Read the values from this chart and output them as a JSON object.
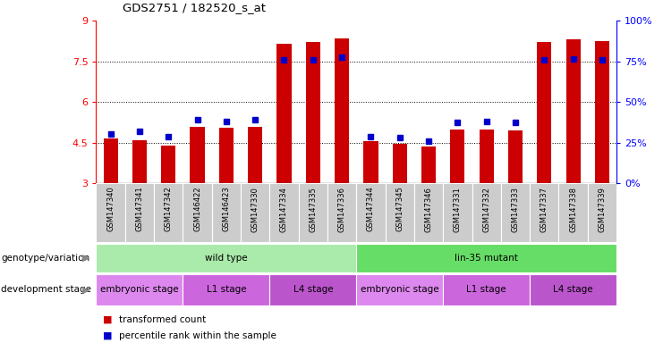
{
  "title": "GDS2751 / 182520_s_at",
  "samples": [
    "GSM147340",
    "GSM147341",
    "GSM147342",
    "GSM146422",
    "GSM146423",
    "GSM147330",
    "GSM147334",
    "GSM147335",
    "GSM147336",
    "GSM147344",
    "GSM147345",
    "GSM147346",
    "GSM147331",
    "GSM147332",
    "GSM147333",
    "GSM147337",
    "GSM147338",
    "GSM147339"
  ],
  "transformed_count": [
    4.65,
    4.6,
    4.4,
    5.1,
    5.05,
    5.1,
    8.15,
    8.2,
    8.35,
    4.55,
    4.45,
    4.35,
    5.0,
    5.0,
    4.95,
    8.2,
    8.3,
    8.25
  ],
  "percentile_rank": [
    4.82,
    4.92,
    4.72,
    5.35,
    5.3,
    5.35,
    7.55,
    7.55,
    7.65,
    4.72,
    4.7,
    4.55,
    5.25,
    5.3,
    5.25,
    7.55,
    7.6,
    7.55
  ],
  "ylim": [
    3,
    9
  ],
  "y_ticks_left": [
    3,
    4.5,
    6,
    7.5,
    9
  ],
  "y_tick_left_labels": [
    "3",
    "4.5",
    "6",
    "7.5",
    "9"
  ],
  "y_ticks_right_labels": [
    "0%",
    "25%",
    "50%",
    "75%",
    "100%"
  ],
  "bar_color": "#cc0000",
  "square_color": "#0000cc",
  "genotype_groups": [
    {
      "label": "wild type",
      "start": 0,
      "end": 9,
      "color": "#aaeaaa"
    },
    {
      "label": "lin-35 mutant",
      "start": 9,
      "end": 18,
      "color": "#66dd66"
    }
  ],
  "dev_stage_groups": [
    {
      "label": "embryonic stage",
      "start": 0,
      "end": 3,
      "color": "#dd88ee"
    },
    {
      "label": "L1 stage",
      "start": 3,
      "end": 6,
      "color": "#cc66dd"
    },
    {
      "label": "L4 stage",
      "start": 6,
      "end": 9,
      "color": "#bb55cc"
    },
    {
      "label": "embryonic stage",
      "start": 9,
      "end": 12,
      "color": "#dd88ee"
    },
    {
      "label": "L1 stage",
      "start": 12,
      "end": 15,
      "color": "#cc66dd"
    },
    {
      "label": "L4 stage",
      "start": 15,
      "end": 18,
      "color": "#bb55cc"
    }
  ],
  "legend_items": [
    {
      "label": "transformed count",
      "color": "#cc0000"
    },
    {
      "label": "percentile rank within the sample",
      "color": "#0000cc"
    }
  ],
  "dotted_lines": [
    4.5,
    6.0,
    7.5
  ],
  "bar_width": 0.5,
  "square_size": 25,
  "tick_label_bg": "#cccccc"
}
